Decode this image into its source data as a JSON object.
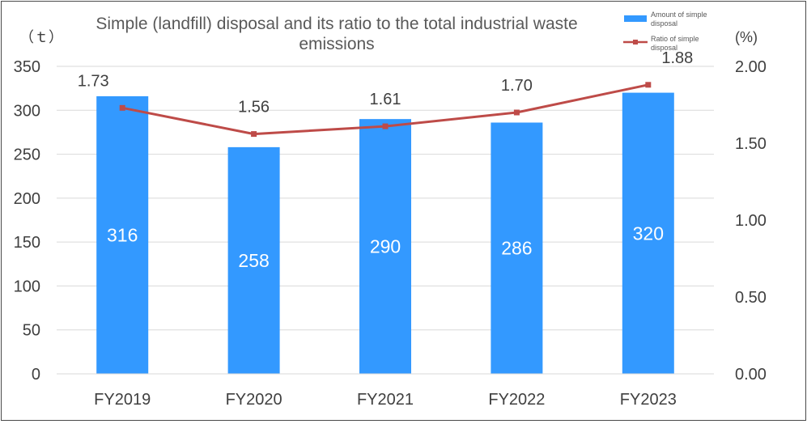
{
  "chart_data": {
    "type": "bar",
    "title": "Simple (landfill) disposal and its ratio to the total industrial waste emissions",
    "title_lines": [
      "Simple (landfill) disposal and its ratio to the total industrial waste",
      "emissions"
    ],
    "y_left_unit": "（ｔ）",
    "y_right_unit": "(%)",
    "categories": [
      "FY2019",
      "FY2020",
      "FY2021",
      "FY2022",
      "FY2023"
    ],
    "y_left_ticks": [
      "0",
      "50",
      "100",
      "150",
      "200",
      "250",
      "300",
      "350"
    ],
    "y_right_ticks": [
      "0.00",
      "0.50",
      "1.00",
      "1.50",
      "2.00"
    ],
    "ylim_left": [
      0,
      350
    ],
    "ylim_right": [
      0,
      2.0
    ],
    "grid": true,
    "legend_position": "top-right",
    "series": [
      {
        "name": "Amount of simple disposal",
        "type": "bar",
        "axis": "left",
        "color": "#3399ff",
        "values": [
          316,
          258,
          290,
          286,
          320
        ],
        "labels": [
          "316",
          "258",
          "290",
          "286",
          "320"
        ]
      },
      {
        "name": "Ratio of simple disposal",
        "type": "line",
        "axis": "right",
        "color": "#be4b48",
        "values": [
          1.73,
          1.56,
          1.61,
          1.7,
          1.88
        ],
        "labels": [
          "1.73",
          "1.56",
          "1.61",
          "1.70",
          "1.88"
        ]
      }
    ]
  }
}
